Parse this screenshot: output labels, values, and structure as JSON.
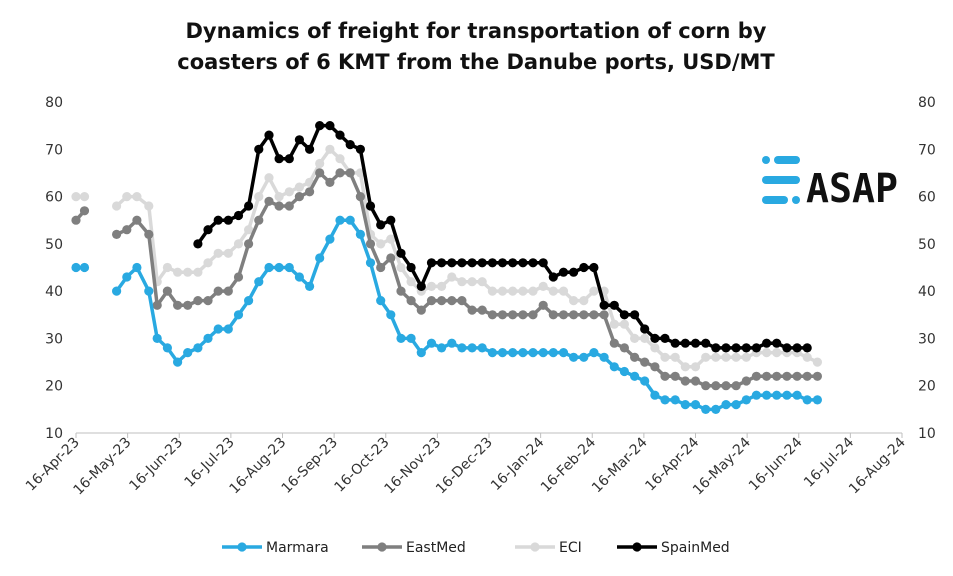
{
  "chart_data": {
    "type": "line",
    "title": "Dynamics of freight for transportation of corn by coasters of 6 KMT from the Danube ports, USD/MT",
    "title_lines": [
      "Dynamics of freight for transportation of corn by",
      "coasters of 6 KMT from the Danube ports, USD/MT"
    ],
    "xlabel": "",
    "ylabel": "",
    "ylim": [
      10,
      80
    ],
    "yticks": [
      10,
      20,
      30,
      40,
      50,
      60,
      70,
      80
    ],
    "x_dates": [
      "16-Apr-23",
      "16-May-23",
      "16-Jun-23",
      "16-Jul-23",
      "16-Aug-23",
      "16-Sep-23",
      "16-Oct-23",
      "16-Nov-23",
      "16-Dec-23",
      "16-Jan-24",
      "16-Feb-24",
      "16-Mar-24",
      "16-Apr-24",
      "16-May-24",
      "16-Jun-24",
      "16-Jul-24",
      "16-Aug-24"
    ],
    "legend_position": "bottom",
    "grid": false,
    "logo_text": "ASAP",
    "series": [
      {
        "name": "Marmara",
        "color": "#29a9e1",
        "points": [
          [
            "2023-04-16",
            45
          ],
          [
            "2023-04-21",
            45
          ],
          [
            "2023-05-10",
            40
          ],
          [
            "2023-05-16",
            43
          ],
          [
            "2023-05-22",
            45
          ],
          [
            "2023-05-29",
            40
          ],
          [
            "2023-06-03",
            30
          ],
          [
            "2023-06-09",
            28
          ],
          [
            "2023-06-15",
            25
          ],
          [
            "2023-06-21",
            27
          ],
          [
            "2023-06-27",
            28
          ],
          [
            "2023-07-03",
            30
          ],
          [
            "2023-07-09",
            32
          ],
          [
            "2023-07-15",
            32
          ],
          [
            "2023-07-21",
            35
          ],
          [
            "2023-07-27",
            38
          ],
          [
            "2023-08-02",
            42
          ],
          [
            "2023-08-08",
            45
          ],
          [
            "2023-08-14",
            45
          ],
          [
            "2023-08-20",
            45
          ],
          [
            "2023-08-26",
            43
          ],
          [
            "2023-09-01",
            41
          ],
          [
            "2023-09-07",
            47
          ],
          [
            "2023-09-13",
            51
          ],
          [
            "2023-09-19",
            55
          ],
          [
            "2023-09-25",
            55
          ],
          [
            "2023-10-01",
            52
          ],
          [
            "2023-10-07",
            46
          ],
          [
            "2023-10-13",
            38
          ],
          [
            "2023-10-19",
            35
          ],
          [
            "2023-10-25",
            30
          ],
          [
            "2023-10-31",
            30
          ],
          [
            "2023-11-06",
            27
          ],
          [
            "2023-11-12",
            29
          ],
          [
            "2023-11-18",
            28
          ],
          [
            "2023-11-24",
            29
          ],
          [
            "2023-11-30",
            28
          ],
          [
            "2023-12-06",
            28
          ],
          [
            "2023-12-12",
            28
          ],
          [
            "2023-12-18",
            27
          ],
          [
            "2023-12-24",
            27
          ],
          [
            "2023-12-30",
            27
          ],
          [
            "2024-01-05",
            27
          ],
          [
            "2024-01-11",
            27
          ],
          [
            "2024-01-17",
            27
          ],
          [
            "2024-01-23",
            27
          ],
          [
            "2024-01-29",
            27
          ],
          [
            "2024-02-04",
            26
          ],
          [
            "2024-02-10",
            26
          ],
          [
            "2024-02-16",
            27
          ],
          [
            "2024-02-22",
            26
          ],
          [
            "2024-02-28",
            24
          ],
          [
            "2024-03-05",
            23
          ],
          [
            "2024-03-11",
            22
          ],
          [
            "2024-03-17",
            21
          ],
          [
            "2024-03-23",
            18
          ],
          [
            "2024-03-29",
            17
          ],
          [
            "2024-04-04",
            17
          ],
          [
            "2024-04-10",
            16
          ],
          [
            "2024-04-16",
            16
          ],
          [
            "2024-04-22",
            15
          ],
          [
            "2024-04-28",
            15
          ],
          [
            "2024-05-04",
            16
          ],
          [
            "2024-05-10",
            16
          ],
          [
            "2024-05-16",
            17
          ],
          [
            "2024-05-22",
            18
          ],
          [
            "2024-05-28",
            18
          ],
          [
            "2024-06-03",
            18
          ],
          [
            "2024-06-09",
            18
          ],
          [
            "2024-06-15",
            18
          ],
          [
            "2024-06-21",
            17
          ],
          [
            "2024-06-27",
            17
          ]
        ]
      },
      {
        "name": "EastMed",
        "color": "#7f7f7f",
        "points": [
          [
            "2023-04-16",
            55
          ],
          [
            "2023-04-21",
            57
          ],
          [
            "2023-05-10",
            52
          ],
          [
            "2023-05-16",
            53
          ],
          [
            "2023-05-22",
            55
          ],
          [
            "2023-05-29",
            52
          ],
          [
            "2023-06-03",
            37
          ],
          [
            "2023-06-09",
            40
          ],
          [
            "2023-06-15",
            37
          ],
          [
            "2023-06-21",
            37
          ],
          [
            "2023-06-27",
            38
          ],
          [
            "2023-07-03",
            38
          ],
          [
            "2023-07-09",
            40
          ],
          [
            "2023-07-15",
            40
          ],
          [
            "2023-07-21",
            43
          ],
          [
            "2023-07-27",
            50
          ],
          [
            "2023-08-02",
            55
          ],
          [
            "2023-08-08",
            59
          ],
          [
            "2023-08-14",
            58
          ],
          [
            "2023-08-20",
            58
          ],
          [
            "2023-08-26",
            60
          ],
          [
            "2023-09-01",
            61
          ],
          [
            "2023-09-07",
            65
          ],
          [
            "2023-09-13",
            63
          ],
          [
            "2023-09-19",
            65
          ],
          [
            "2023-09-25",
            65
          ],
          [
            "2023-10-01",
            60
          ],
          [
            "2023-10-07",
            50
          ],
          [
            "2023-10-13",
            45
          ],
          [
            "2023-10-19",
            47
          ],
          [
            "2023-10-25",
            40
          ],
          [
            "2023-10-31",
            38
          ],
          [
            "2023-11-06",
            36
          ],
          [
            "2023-11-12",
            38
          ],
          [
            "2023-11-18",
            38
          ],
          [
            "2023-11-24",
            38
          ],
          [
            "2023-11-30",
            38
          ],
          [
            "2023-12-06",
            36
          ],
          [
            "2023-12-12",
            36
          ],
          [
            "2023-12-18",
            35
          ],
          [
            "2023-12-24",
            35
          ],
          [
            "2023-12-30",
            35
          ],
          [
            "2024-01-05",
            35
          ],
          [
            "2024-01-11",
            35
          ],
          [
            "2024-01-17",
            37
          ],
          [
            "2024-01-23",
            35
          ],
          [
            "2024-01-29",
            35
          ],
          [
            "2024-02-04",
            35
          ],
          [
            "2024-02-10",
            35
          ],
          [
            "2024-02-16",
            35
          ],
          [
            "2024-02-22",
            35
          ],
          [
            "2024-02-28",
            29
          ],
          [
            "2024-03-05",
            28
          ],
          [
            "2024-03-11",
            26
          ],
          [
            "2024-03-17",
            25
          ],
          [
            "2024-03-23",
            24
          ],
          [
            "2024-03-29",
            22
          ],
          [
            "2024-04-04",
            22
          ],
          [
            "2024-04-10",
            21
          ],
          [
            "2024-04-16",
            21
          ],
          [
            "2024-04-22",
            20
          ],
          [
            "2024-04-28",
            20
          ],
          [
            "2024-05-04",
            20
          ],
          [
            "2024-05-10",
            20
          ],
          [
            "2024-05-16",
            21
          ],
          [
            "2024-05-22",
            22
          ],
          [
            "2024-05-28",
            22
          ],
          [
            "2024-06-03",
            22
          ],
          [
            "2024-06-09",
            22
          ],
          [
            "2024-06-15",
            22
          ],
          [
            "2024-06-21",
            22
          ],
          [
            "2024-06-27",
            22
          ]
        ]
      },
      {
        "name": "ECI",
        "color": "#d9d9d9",
        "points": [
          [
            "2023-04-16",
            60
          ],
          [
            "2023-04-21",
            60
          ],
          [
            "2023-05-10",
            58
          ],
          [
            "2023-05-16",
            60
          ],
          [
            "2023-05-22",
            60
          ],
          [
            "2023-05-29",
            58
          ],
          [
            "2023-06-03",
            42
          ],
          [
            "2023-06-09",
            45
          ],
          [
            "2023-06-15",
            44
          ],
          [
            "2023-06-21",
            44
          ],
          [
            "2023-06-27",
            44
          ],
          [
            "2023-07-03",
            46
          ],
          [
            "2023-07-09",
            48
          ],
          [
            "2023-07-15",
            48
          ],
          [
            "2023-07-21",
            50
          ],
          [
            "2023-07-27",
            53
          ],
          [
            "2023-08-02",
            60
          ],
          [
            "2023-08-08",
            64
          ],
          [
            "2023-08-14",
            60
          ],
          [
            "2023-08-20",
            61
          ],
          [
            "2023-08-26",
            62
          ],
          [
            "2023-09-01",
            63
          ],
          [
            "2023-09-07",
            67
          ],
          [
            "2023-09-13",
            70
          ],
          [
            "2023-09-19",
            68
          ],
          [
            "2023-09-25",
            65
          ],
          [
            "2023-10-01",
            65
          ],
          [
            "2023-10-07",
            52
          ],
          [
            "2023-10-13",
            50
          ],
          [
            "2023-10-19",
            51
          ],
          [
            "2023-10-25",
            45
          ],
          [
            "2023-10-31",
            42
          ],
          [
            "2023-11-06",
            40
          ],
          [
            "2023-11-12",
            41
          ],
          [
            "2023-11-18",
            41
          ],
          [
            "2023-11-24",
            43
          ],
          [
            "2023-11-30",
            42
          ],
          [
            "2023-12-06",
            42
          ],
          [
            "2023-12-12",
            42
          ],
          [
            "2023-12-18",
            40
          ],
          [
            "2023-12-24",
            40
          ],
          [
            "2023-12-30",
            40
          ],
          [
            "2024-01-05",
            40
          ],
          [
            "2024-01-11",
            40
          ],
          [
            "2024-01-17",
            41
          ],
          [
            "2024-01-23",
            40
          ],
          [
            "2024-01-29",
            40
          ],
          [
            "2024-02-04",
            38
          ],
          [
            "2024-02-10",
            38
          ],
          [
            "2024-02-16",
            40
          ],
          [
            "2024-02-22",
            40
          ],
          [
            "2024-02-28",
            33
          ],
          [
            "2024-03-05",
            33
          ],
          [
            "2024-03-11",
            30
          ],
          [
            "2024-03-17",
            30
          ],
          [
            "2024-03-23",
            28
          ],
          [
            "2024-03-29",
            26
          ],
          [
            "2024-04-04",
            26
          ],
          [
            "2024-04-10",
            24
          ],
          [
            "2024-04-16",
            24
          ],
          [
            "2024-04-22",
            26
          ],
          [
            "2024-04-28",
            26
          ],
          [
            "2024-05-04",
            26
          ],
          [
            "2024-05-10",
            26
          ],
          [
            "2024-05-16",
            26
          ],
          [
            "2024-05-22",
            27
          ],
          [
            "2024-05-28",
            27
          ],
          [
            "2024-06-03",
            27
          ],
          [
            "2024-06-09",
            27
          ],
          [
            "2024-06-15",
            27
          ],
          [
            "2024-06-21",
            26
          ],
          [
            "2024-06-27",
            25
          ]
        ]
      },
      {
        "name": "SpainMed",
        "color": "#000000",
        "points": [
          [
            "2023-06-27",
            50
          ],
          [
            "2023-07-03",
            53
          ],
          [
            "2023-07-09",
            55
          ],
          [
            "2023-07-15",
            55
          ],
          [
            "2023-07-21",
            56
          ],
          [
            "2023-07-27",
            58
          ],
          [
            "2023-08-02",
            70
          ],
          [
            "2023-08-08",
            73
          ],
          [
            "2023-08-14",
            68
          ],
          [
            "2023-08-20",
            68
          ],
          [
            "2023-08-26",
            72
          ],
          [
            "2023-09-01",
            70
          ],
          [
            "2023-09-07",
            75
          ],
          [
            "2023-09-13",
            75
          ],
          [
            "2023-09-19",
            73
          ],
          [
            "2023-09-25",
            71
          ],
          [
            "2023-10-01",
            70
          ],
          [
            "2023-10-07",
            58
          ],
          [
            "2023-10-13",
            54
          ],
          [
            "2023-10-19",
            55
          ],
          [
            "2023-10-25",
            48
          ],
          [
            "2023-10-31",
            45
          ],
          [
            "2023-11-06",
            41
          ],
          [
            "2023-11-12",
            46
          ],
          [
            "2023-11-18",
            46
          ],
          [
            "2023-11-24",
            46
          ],
          [
            "2023-11-30",
            46
          ],
          [
            "2023-12-06",
            46
          ],
          [
            "2023-12-12",
            46
          ],
          [
            "2023-12-18",
            46
          ],
          [
            "2023-12-24",
            46
          ],
          [
            "2023-12-30",
            46
          ],
          [
            "2024-01-05",
            46
          ],
          [
            "2024-01-11",
            46
          ],
          [
            "2024-01-17",
            46
          ],
          [
            "2024-01-23",
            43
          ],
          [
            "2024-01-29",
            44
          ],
          [
            "2024-02-04",
            44
          ],
          [
            "2024-02-10",
            45
          ],
          [
            "2024-02-16",
            45
          ],
          [
            "2024-02-22",
            37
          ],
          [
            "2024-02-28",
            37
          ],
          [
            "2024-03-05",
            35
          ],
          [
            "2024-03-11",
            35
          ],
          [
            "2024-03-17",
            32
          ],
          [
            "2024-03-23",
            30
          ],
          [
            "2024-03-29",
            30
          ],
          [
            "2024-04-04",
            29
          ],
          [
            "2024-04-10",
            29
          ],
          [
            "2024-04-16",
            29
          ],
          [
            "2024-04-22",
            29
          ],
          [
            "2024-04-28",
            28
          ],
          [
            "2024-05-04",
            28
          ],
          [
            "2024-05-10",
            28
          ],
          [
            "2024-05-16",
            28
          ],
          [
            "2024-05-22",
            28
          ],
          [
            "2024-05-28",
            29
          ],
          [
            "2024-06-03",
            29
          ],
          [
            "2024-06-09",
            28
          ],
          [
            "2024-06-15",
            28
          ],
          [
            "2024-06-21",
            28
          ]
        ]
      }
    ]
  }
}
